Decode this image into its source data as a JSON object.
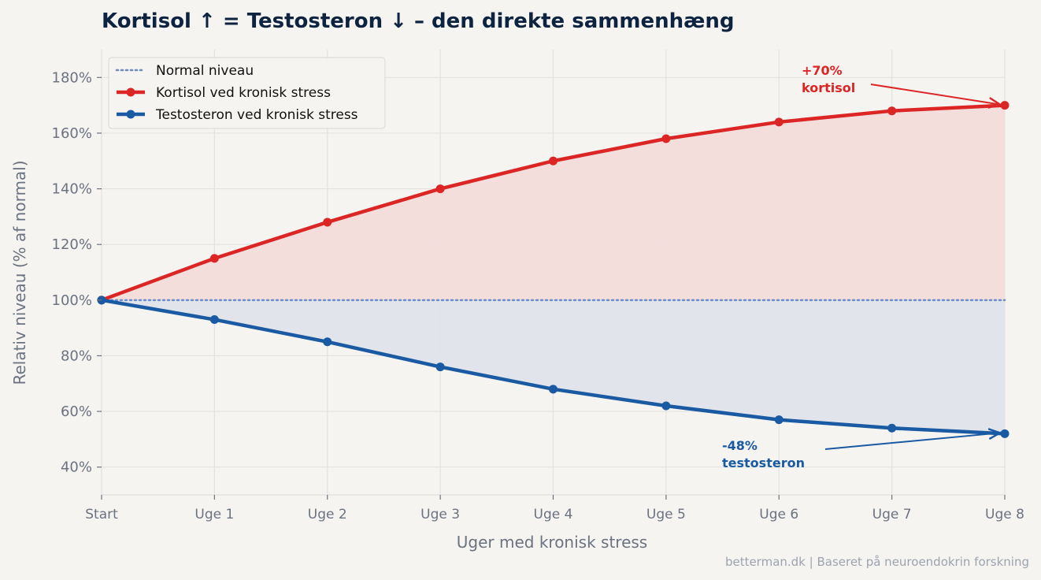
{
  "chart_data": {
    "type": "line",
    "title": "Kortisol ↑ = Testosteron ↓  –  den direkte sammenhæng",
    "xlabel": "Uger med kronisk stress",
    "ylabel": "Relativ niveau (% af normal)",
    "categories": [
      "Start",
      "Uge 1",
      "Uge 2",
      "Uge 3",
      "Uge 4",
      "Uge 5",
      "Uge 6",
      "Uge 7",
      "Uge 8"
    ],
    "ylim": [
      30,
      190
    ],
    "yticks": [
      40,
      60,
      80,
      100,
      120,
      140,
      160,
      180
    ],
    "ytick_labels": [
      "40%",
      "60%",
      "80%",
      "100%",
      "120%",
      "140%",
      "160%",
      "180%"
    ],
    "grid": true,
    "legend_position": "top-left",
    "baseline": {
      "name": "Normal niveau",
      "value": 100,
      "color": "#6b8cc9"
    },
    "series": [
      {
        "name": "Kortisol ved kronisk stress",
        "color": "#dc2626",
        "fill": "#f2dcda",
        "values": [
          100,
          115,
          128,
          140,
          150,
          158,
          164,
          168,
          170
        ]
      },
      {
        "name": "Testosteron ved kronisk stress",
        "color": "#1a5aa3",
        "fill": "#dfe4ea",
        "values": [
          100,
          93,
          85,
          76,
          68,
          62,
          57,
          54,
          52
        ]
      }
    ],
    "annotations": [
      {
        "lines": [
          "+70%",
          "kortisol"
        ],
        "color": "#dc2626",
        "target_index": 8,
        "target_series": 0
      },
      {
        "lines": [
          "-48%",
          "testosteron"
        ],
        "color": "#1a5aa3",
        "target_index": 8,
        "target_series": 1
      }
    ]
  },
  "footer": "betterman.dk | Baseret på neuroendokrin forskning"
}
